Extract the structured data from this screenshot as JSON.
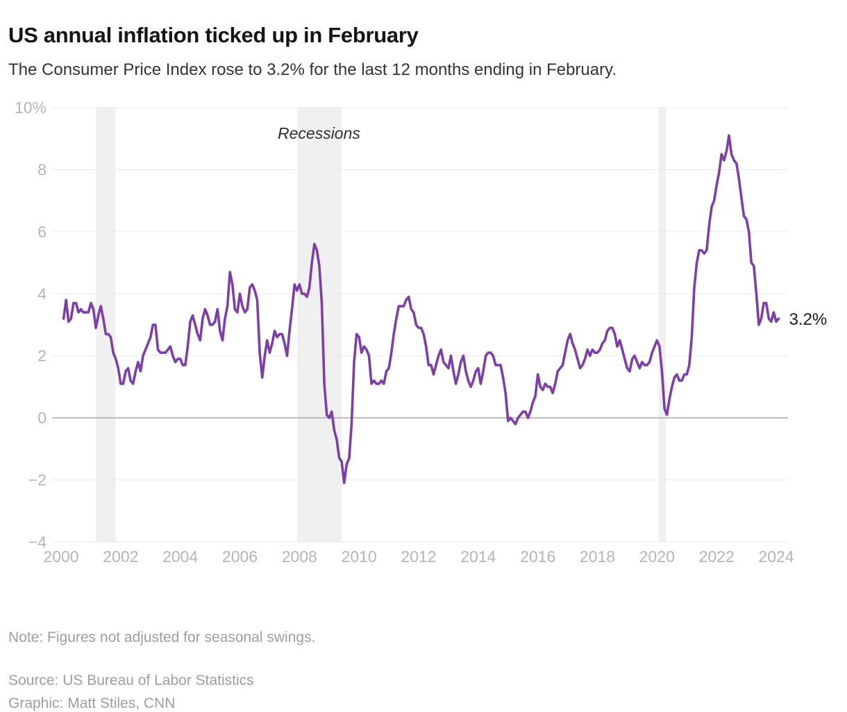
{
  "header": {
    "title": "US annual inflation ticked up in February",
    "subtitle": "The Consumer Price Index rose to 3.2% for the last 12 months ending in February."
  },
  "footer": {
    "note": "Note: Figures not adjusted for seasonal swings.",
    "source": "Source: US Bureau of Labor Statistics",
    "credit": "Graphic: Matt Stiles, CNN"
  },
  "chart_data": {
    "type": "line",
    "title": "US annual inflation ticked up in February",
    "xlabel": "",
    "ylabel": "",
    "ylim": [
      -4,
      10
    ],
    "x_range_years": [
      2000,
      2024.25
    ],
    "grid": true,
    "y_ticks": [
      {
        "value": 10,
        "label": "10%"
      },
      {
        "value": 8,
        "label": "8"
      },
      {
        "value": 6,
        "label": "6"
      },
      {
        "value": 4,
        "label": "4"
      },
      {
        "value": 2,
        "label": "2"
      },
      {
        "value": 0,
        "label": "0"
      },
      {
        "value": -2,
        "label": "−2"
      },
      {
        "value": -4,
        "label": "−4"
      }
    ],
    "x_ticks": [
      {
        "value": 2000,
        "label": "2000"
      },
      {
        "value": 2002,
        "label": "2002"
      },
      {
        "value": 2004,
        "label": "2004"
      },
      {
        "value": 2006,
        "label": "2006"
      },
      {
        "value": 2008,
        "label": "2008"
      },
      {
        "value": 2010,
        "label": "2010"
      },
      {
        "value": 2012,
        "label": "2012"
      },
      {
        "value": 2014,
        "label": "2014"
      },
      {
        "value": 2016,
        "label": "2016"
      },
      {
        "value": 2018,
        "label": "2018"
      },
      {
        "value": 2020,
        "label": "2020"
      },
      {
        "value": 2022,
        "label": "2022"
      },
      {
        "value": 2024,
        "label": "2024"
      }
    ],
    "recession_bands_years": [
      [
        2001.17,
        2001.83
      ],
      [
        2007.92,
        2009.42
      ],
      [
        2020.05,
        2020.3
      ]
    ],
    "annotations": {
      "recessions_label": "Recessions",
      "end_label": "3.2%"
    },
    "series": [
      {
        "name": "CPI 12-month change (%)",
        "start": "2000-02",
        "frequency": "monthly",
        "values": [
          3.2,
          3.8,
          3.1,
          3.2,
          3.7,
          3.7,
          3.4,
          3.5,
          3.4,
          3.4,
          3.4,
          3.7,
          3.5,
          2.9,
          3.3,
          3.6,
          3.2,
          2.7,
          2.7,
          2.6,
          2.1,
          1.9,
          1.6,
          1.1,
          1.1,
          1.5,
          1.6,
          1.2,
          1.1,
          1.5,
          1.8,
          1.5,
          2.0,
          2.2,
          2.4,
          2.6,
          3.0,
          3.0,
          2.2,
          2.1,
          2.1,
          2.1,
          2.2,
          2.3,
          2.0,
          1.8,
          1.9,
          1.9,
          1.7,
          1.7,
          2.3,
          3.1,
          3.3,
          3.0,
          2.7,
          2.5,
          3.2,
          3.5,
          3.3,
          3.0,
          3.0,
          3.1,
          3.5,
          2.8,
          2.5,
          3.2,
          3.6,
          4.7,
          4.3,
          3.5,
          3.4,
          4.0,
          3.6,
          3.4,
          3.5,
          4.2,
          4.3,
          4.1,
          3.8,
          2.1,
          1.3,
          2.0,
          2.5,
          2.1,
          2.4,
          2.8,
          2.6,
          2.7,
          2.7,
          2.4,
          2.0,
          2.8,
          3.5,
          4.3,
          4.1,
          4.3,
          4.0,
          4.0,
          3.9,
          4.2,
          5.0,
          5.6,
          5.4,
          4.9,
          3.7,
          1.1,
          0.1,
          0.0,
          0.2,
          -0.4,
          -0.7,
          -1.3,
          -1.4,
          -2.1,
          -1.5,
          -1.3,
          -0.2,
          1.8,
          2.7,
          2.6,
          2.1,
          2.3,
          2.2,
          2.0,
          1.1,
          1.2,
          1.1,
          1.1,
          1.2,
          1.1,
          1.5,
          1.6,
          2.1,
          2.7,
          3.2,
          3.6,
          3.6,
          3.6,
          3.8,
          3.9,
          3.5,
          3.4,
          3.0,
          2.9,
          2.9,
          2.7,
          2.3,
          1.7,
          1.7,
          1.4,
          1.7,
          2.0,
          2.2,
          1.8,
          1.7,
          1.6,
          2.0,
          1.5,
          1.1,
          1.4,
          1.8,
          2.0,
          1.5,
          1.2,
          1.0,
          1.2,
          1.5,
          1.6,
          1.1,
          1.5,
          2.0,
          2.1,
          2.1,
          2.0,
          1.7,
          1.7,
          1.7,
          1.3,
          0.8,
          -0.1,
          0.0,
          -0.1,
          -0.2,
          0.0,
          0.1,
          0.2,
          0.2,
          0.0,
          0.2,
          0.5,
          0.7,
          1.4,
          1.0,
          0.9,
          1.1,
          1.0,
          1.0,
          0.8,
          1.1,
          1.5,
          1.6,
          1.7,
          2.1,
          2.5,
          2.7,
          2.4,
          2.2,
          1.9,
          1.6,
          1.7,
          1.9,
          2.2,
          2.0,
          2.2,
          2.1,
          2.1,
          2.2,
          2.4,
          2.5,
          2.8,
          2.9,
          2.9,
          2.7,
          2.3,
          2.5,
          2.2,
          1.9,
          1.6,
          1.5,
          1.9,
          2.0,
          1.8,
          1.6,
          1.8,
          1.7,
          1.7,
          1.8,
          2.1,
          2.3,
          2.5,
          2.3,
          1.5,
          0.3,
          0.1,
          0.6,
          1.0,
          1.3,
          1.4,
          1.2,
          1.2,
          1.4,
          1.4,
          1.7,
          2.6,
          4.2,
          5.0,
          5.4,
          5.4,
          5.3,
          5.4,
          6.2,
          6.8,
          7.0,
          7.5,
          7.9,
          8.5,
          8.3,
          8.6,
          9.1,
          8.5,
          8.3,
          8.2,
          7.7,
          7.1,
          6.5,
          6.4,
          6.0,
          5.0,
          4.9,
          4.0,
          3.0,
          3.2,
          3.7,
          3.7,
          3.2,
          3.1,
          3.4,
          3.1,
          3.2
        ]
      }
    ],
    "colors": {
      "line": "#7d3ea7",
      "recession_band": "#f0f0f0",
      "grid": "#e9e9e9",
      "zero_line": "#a8a8a8",
      "axis_text": "#b5b5b5",
      "annotation_text": "#2e2e2e",
      "end_label": "#1a1a1a"
    }
  }
}
